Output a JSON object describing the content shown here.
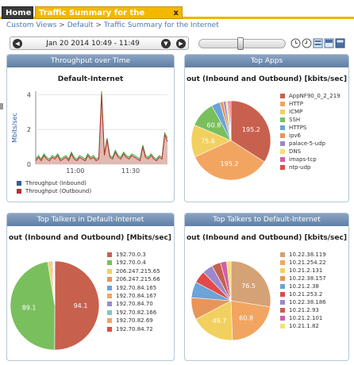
{
  "tabs": {
    "home_label": "Home",
    "active_label": "Traffic Summary for the Internet",
    "close_label": "x"
  },
  "breadcrumb": {
    "items": [
      "Custom Views",
      "Default",
      "Traffic Summary for the Internet"
    ],
    "separator": ">"
  },
  "timebar": {
    "prev": "◀",
    "range": "Jan 20 2014 10:49 - 11:49",
    "down": "▼",
    "next": "▶"
  },
  "panels": {
    "throughput": {
      "header": "Throughput over Time",
      "title": "Default-Internet",
      "ylabel": "Mbits/sec",
      "legend": [
        {
          "label": "Throughput (Inbound)",
          "color": "#2f5fa0"
        },
        {
          "label": "Throughput (Outbound)",
          "color": "#b8312f"
        }
      ]
    },
    "apps": {
      "header": "Top Apps",
      "title": "out (Inbound and Outbound) [kbits/sec]",
      "legend": [
        {
          "label": "AppNF90_0_2_219",
          "color": "#c8604e"
        },
        {
          "label": "HTTP",
          "color": "#f2a560"
        },
        {
          "label": "ICMP",
          "color": "#f2d060"
        },
        {
          "label": "SSH",
          "color": "#7abf5e"
        },
        {
          "label": "HTTPS",
          "color": "#6aa4d8"
        },
        {
          "label": "ipv6",
          "color": "#e8955a"
        },
        {
          "label": "palace-5-udp",
          "color": "#9a8acb"
        },
        {
          "label": "DNS",
          "color": "#f5e070"
        },
        {
          "label": "imaps-tcp",
          "color": "#d060a8"
        },
        {
          "label": "ntp-udp",
          "color": "#e24a4a"
        }
      ]
    },
    "talkers": {
      "header": "Top Talkers in Default-Internet",
      "title": "out (Inbound and Outbound) [Mbits/sec]",
      "legend": [
        {
          "label": "192.70.0.3",
          "color": "#c8604e"
        },
        {
          "label": "192.70.0.4",
          "color": "#7abf5e"
        },
        {
          "label": "206.247.215.65",
          "color": "#f2d060"
        },
        {
          "label": "206.247.215.66",
          "color": "#e8955a"
        },
        {
          "label": "192.70.84.165",
          "color": "#6aa4d8"
        },
        {
          "label": "192.70.84.167",
          "color": "#f2a560"
        },
        {
          "label": "192.70.84.70",
          "color": "#9a8acb"
        },
        {
          "label": "192.70.82.166",
          "color": "#7fc6c6"
        },
        {
          "label": "192.70.82.69",
          "color": "#f2a560"
        },
        {
          "label": "192.70.84.72",
          "color": "#e24a4a"
        }
      ]
    },
    "to": {
      "header": "Top Talkers to Default-Internet",
      "title": "out (Inbound and Outbound) [kbits/sec]",
      "legend": [
        {
          "label": "10.22.38.119",
          "color": "#d5a275"
        },
        {
          "label": "10.21.254.22",
          "color": "#f2a560"
        },
        {
          "label": "10.21.2.131",
          "color": "#f2d060"
        },
        {
          "label": "10.22.38.157",
          "color": "#e8955a"
        },
        {
          "label": "10.21.2.38",
          "color": "#6aa4d8"
        },
        {
          "label": "10.21.253.2",
          "color": "#e24a4a"
        },
        {
          "label": "10.22.38.186",
          "color": "#9a8acb"
        },
        {
          "label": "10.21.2.93",
          "color": "#c8604e"
        },
        {
          "label": "10.21.2.101",
          "color": "#d060a8"
        },
        {
          "label": "10.21.1.82",
          "color": "#f5e070"
        }
      ]
    }
  },
  "chart_data": [
    {
      "type": "area",
      "title": "Default-Internet",
      "ylabel": "Mbits/sec",
      "xlabel": "",
      "x_ticks": [
        "11:00",
        "11:30"
      ],
      "y_ticks": [
        0,
        2,
        4
      ],
      "ylim": [
        0,
        4.2
      ],
      "series": [
        {
          "name": "Throughput (Inbound)",
          "values": [
            0.3,
            0.5,
            0.3,
            0.6,
            0.4,
            0.3,
            0.5,
            0.4,
            0.6,
            0.3,
            0.4,
            0.5,
            0.3,
            0.7,
            0.4,
            0.3,
            0.5,
            0.4,
            0.3,
            0.6,
            0.4,
            0.5,
            0.3,
            0.4,
            4.2,
            0.6,
            1.5,
            0.5,
            0.4,
            0.8,
            0.5,
            0.4,
            0.7,
            0.5,
            0.4,
            0.6,
            0.5,
            0.4,
            0.3,
            1.1,
            0.5,
            0.4,
            0.6,
            0.4,
            0.3,
            0.5,
            0.4,
            1.8,
            1.5
          ]
        },
        {
          "name": "Throughput (Outbound)",
          "values": [
            0.2,
            0.4,
            0.2,
            0.5,
            0.3,
            0.2,
            0.4,
            0.3,
            0.5,
            0.2,
            0.3,
            0.4,
            0.2,
            0.6,
            0.3,
            0.2,
            0.4,
            0.3,
            0.2,
            0.5,
            0.3,
            0.4,
            0.2,
            0.3,
            4.0,
            0.5,
            1.4,
            0.4,
            0.3,
            0.7,
            0.4,
            0.3,
            0.6,
            0.4,
            0.3,
            0.5,
            0.4,
            0.3,
            0.2,
            1.0,
            0.4,
            0.3,
            0.5,
            0.3,
            0.2,
            0.4,
            0.3,
            1.7,
            1.3
          ]
        }
      ]
    },
    {
      "type": "pie",
      "title": "out (Inbound and Outbound) [kbits/sec]",
      "categories": [
        "AppNF90_0_2_219",
        "HTTP",
        "ICMP",
        "SSH",
        "HTTPS",
        "ipv6",
        "palace-5-udp",
        "DNS",
        "imaps-tcp",
        "ntp-udp"
      ],
      "values": [
        195.2,
        195.2,
        75.6,
        60.8,
        20,
        8,
        6,
        5,
        4,
        3
      ],
      "labels_shown": [
        "195.2",
        "195.2",
        "75.6",
        "60.8",
        "",
        "",
        "",
        "",
        "",
        ""
      ]
    },
    {
      "type": "pie",
      "title": "out (Inbound and Outbound) [Mbits/sec]",
      "categories": [
        "192.70.0.3",
        "192.70.0.4",
        "206.247.215.65",
        "206.247.215.66",
        "192.70.84.165",
        "192.70.84.167",
        "192.70.84.70",
        "192.70.82.166",
        "192.70.82.69",
        "192.70.84.72"
      ],
      "values": [
        94.1,
        89.1,
        2,
        1,
        0.5,
        0.4,
        0.3,
        0.2,
        0.2,
        0.2
      ],
      "labels_shown": [
        "94.1",
        "89.1",
        "",
        "",
        "",
        "",
        "",
        "",
        "",
        ""
      ]
    },
    {
      "type": "pie",
      "title": "out (Inbound and Outbound) [kbits/sec]",
      "categories": [
        "10.22.38.119",
        "10.21.254.22",
        "10.21.2.131",
        "10.22.38.157",
        "10.21.2.38",
        "10.21.253.2",
        "10.22.38.186",
        "10.21.2.93",
        "10.21.2.101",
        "10.21.1.82"
      ],
      "values": [
        76.5,
        60.8,
        49.7,
        25,
        18,
        14,
        12,
        10,
        7,
        5
      ],
      "labels_shown": [
        "76.5",
        "60.8",
        "49.7",
        "",
        "",
        "",
        "",
        "",
        "",
        ""
      ]
    }
  ]
}
